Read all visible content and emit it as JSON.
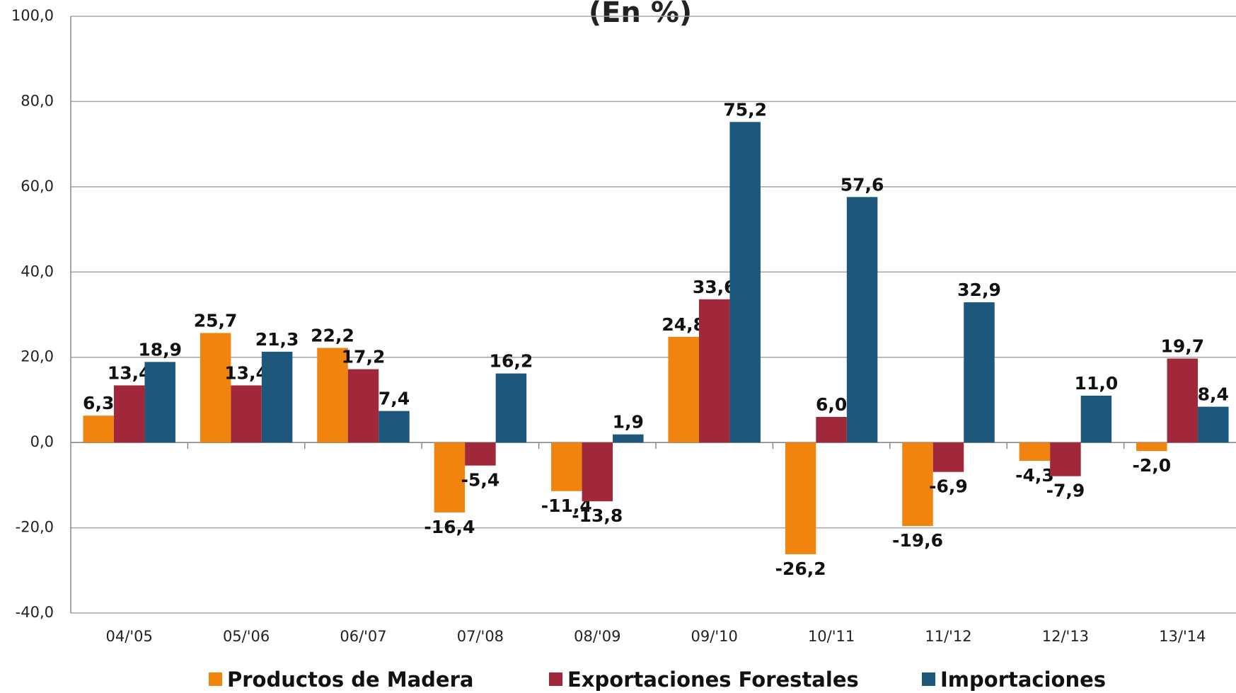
{
  "chart_data": {
    "type": "bar",
    "title": "(En %)",
    "categories": [
      "04/'05",
      "05/'06",
      "06/'07",
      "07/'08",
      "08/'09",
      "09/'10",
      "10/'11",
      "11/'12",
      "12/'13",
      "13/'14"
    ],
    "series": [
      {
        "name": "Productos de Madera",
        "color": "#f0840f",
        "values": [
          6.3,
          25.7,
          22.2,
          -16.4,
          -11.4,
          24.8,
          -26.2,
          -19.6,
          -4.3,
          -2.0
        ],
        "value_labels": [
          "6,3",
          "25,7",
          "22,2",
          "-16,4",
          "-11,4",
          "24,8",
          "-26,2",
          "-19,6",
          "-4,3",
          "-2,0"
        ]
      },
      {
        "name": "Exportaciones Forestales",
        "color": "#a0283a",
        "values": [
          13.4,
          13.4,
          17.2,
          -5.4,
          -13.8,
          33.6,
          6.0,
          -6.9,
          -7.9,
          19.7
        ],
        "value_labels": [
          "13,4",
          "13,4",
          "17,2",
          "-5,4",
          "-13,8",
          "33,6",
          "6,0",
          "-6,9",
          "-7,9",
          "19,7"
        ]
      },
      {
        "name": "Importaciones",
        "color": "#1d587c",
        "values": [
          18.9,
          21.3,
          7.4,
          16.2,
          1.9,
          75.2,
          57.6,
          32.9,
          11.0,
          8.4
        ],
        "value_labels": [
          "18,9",
          "21,3",
          "7,4",
          "16,2",
          "1,9",
          "75,2",
          "57,6",
          "32,9",
          "11,0",
          "8,4"
        ]
      }
    ],
    "ylim": [
      -40,
      100
    ],
    "yticks": [
      {
        "value": -40,
        "label": "-40,0"
      },
      {
        "value": -20,
        "label": "-20,0"
      },
      {
        "value": 0,
        "label": "0,0"
      },
      {
        "value": 20,
        "label": "20,0"
      },
      {
        "value": 40,
        "label": "40,0"
      },
      {
        "value": 60,
        "label": "60,0"
      },
      {
        "value": 80,
        "label": "80,0"
      },
      {
        "value": 100,
        "label": "100,0"
      }
    ],
    "grid": true,
    "legend": "bottom"
  }
}
